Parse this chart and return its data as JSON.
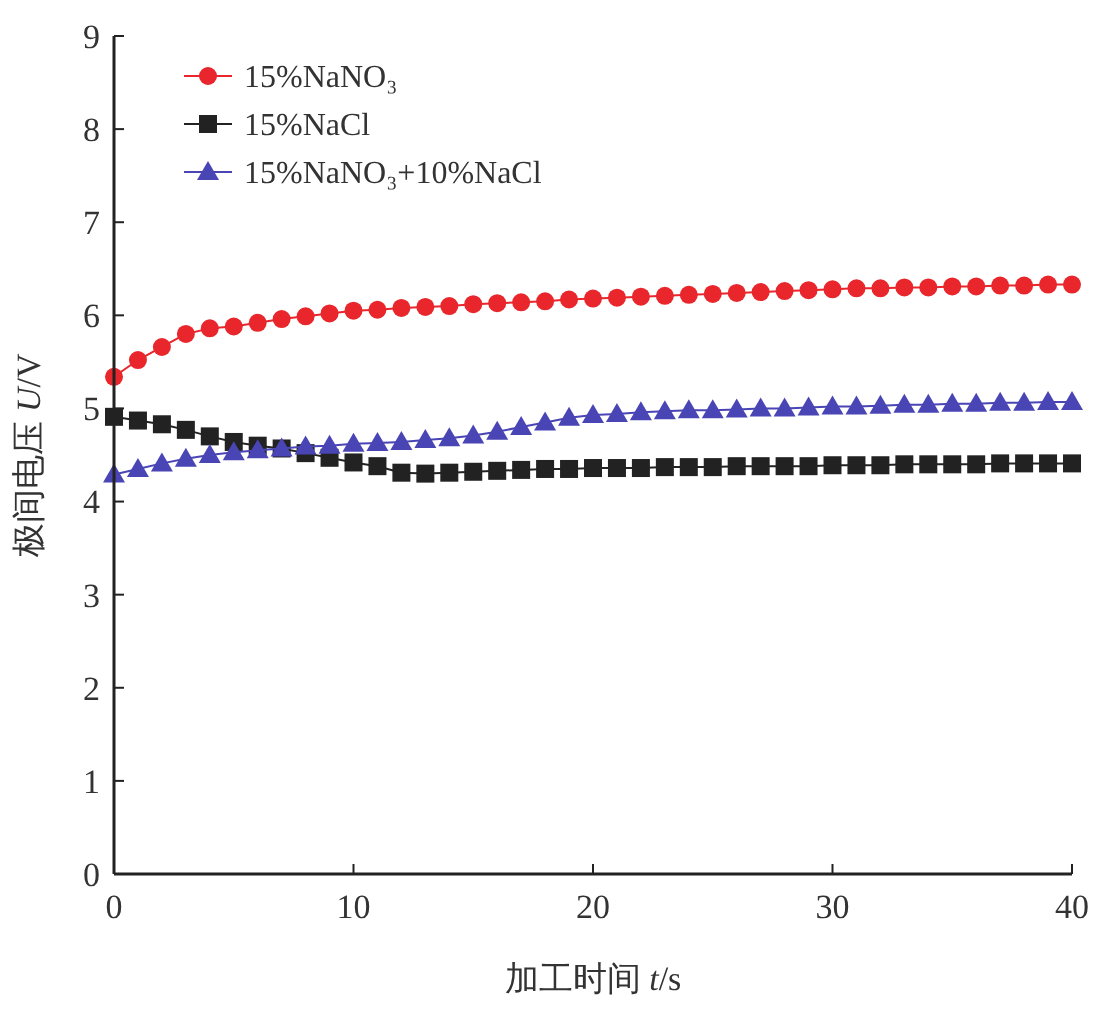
{
  "chart_data": {
    "type": "line",
    "xlabel": "加工时间 t/s",
    "ylabel": "极间电压 U/V",
    "x": [
      0,
      1,
      2,
      3,
      4,
      5,
      6,
      7,
      8,
      9,
      10,
      11,
      12,
      13,
      14,
      15,
      16,
      17,
      18,
      19,
      20,
      21,
      22,
      23,
      24,
      25,
      26,
      27,
      28,
      29,
      30,
      31,
      32,
      33,
      34,
      35,
      36,
      37,
      38,
      39,
      40
    ],
    "series": [
      {
        "name": "15%NaNO₃",
        "color": "#e8262b",
        "marker": "circle",
        "values": [
          5.34,
          5.52,
          5.66,
          5.8,
          5.86,
          5.88,
          5.92,
          5.96,
          5.99,
          6.02,
          6.05,
          6.06,
          6.08,
          6.09,
          6.1,
          6.12,
          6.13,
          6.14,
          6.15,
          6.17,
          6.18,
          6.19,
          6.2,
          6.21,
          6.22,
          6.23,
          6.24,
          6.25,
          6.26,
          6.27,
          6.28,
          6.29,
          6.29,
          6.3,
          6.3,
          6.31,
          6.31,
          6.32,
          6.32,
          6.33,
          6.33
        ]
      },
      {
        "name": "15%NaCl",
        "color": "#222222",
        "marker": "square",
        "values": [
          4.91,
          4.87,
          4.83,
          4.77,
          4.7,
          4.64,
          4.6,
          4.57,
          4.52,
          4.47,
          4.42,
          4.38,
          4.31,
          4.3,
          4.31,
          4.32,
          4.33,
          4.34,
          4.35,
          4.35,
          4.36,
          4.36,
          4.36,
          4.37,
          4.37,
          4.37,
          4.38,
          4.38,
          4.38,
          4.38,
          4.39,
          4.39,
          4.39,
          4.4,
          4.4,
          4.4,
          4.4,
          4.41,
          4.41,
          4.41,
          4.41
        ]
      },
      {
        "name": "15%NaNO₃+10%NaCl",
        "color": "#4a45b5",
        "marker": "triangle",
        "values": [
          4.29,
          4.35,
          4.41,
          4.46,
          4.5,
          4.53,
          4.55,
          4.57,
          4.59,
          4.6,
          4.62,
          4.63,
          4.64,
          4.66,
          4.68,
          4.71,
          4.75,
          4.8,
          4.85,
          4.9,
          4.93,
          4.94,
          4.96,
          4.97,
          4.98,
          4.98,
          4.99,
          5.0,
          5.0,
          5.01,
          5.02,
          5.02,
          5.03,
          5.04,
          5.04,
          5.05,
          5.05,
          5.06,
          5.06,
          5.07,
          5.07
        ]
      }
    ],
    "xlim": [
      0,
      40
    ],
    "xticks": [
      0,
      10,
      20,
      30,
      40
    ],
    "ylim": [
      0,
      9
    ],
    "yticks": [
      0,
      1,
      2,
      3,
      4,
      5,
      6,
      7,
      8,
      9
    ],
    "grid": false,
    "legend": "top left"
  }
}
